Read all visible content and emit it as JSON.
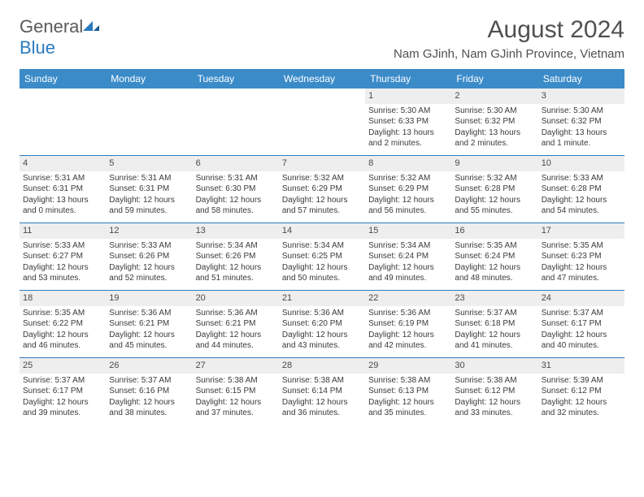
{
  "logo": {
    "text1": "General",
    "text2": "Blue"
  },
  "title": "August 2024",
  "location": "Nam GJinh, Nam GJinh Province, Vietnam",
  "colors": {
    "header_bg": "#3b8bc9",
    "daynum_bg": "#eeeeee",
    "border": "#2b7bbf",
    "text": "#3a3a3a",
    "title_text": "#505050"
  },
  "weekdays": [
    "Sunday",
    "Monday",
    "Tuesday",
    "Wednesday",
    "Thursday",
    "Friday",
    "Saturday"
  ],
  "weeks": [
    [
      null,
      null,
      null,
      null,
      {
        "n": "1",
        "sr": "5:30 AM",
        "ss": "6:33 PM",
        "dl": "13 hours and 2 minutes."
      },
      {
        "n": "2",
        "sr": "5:30 AM",
        "ss": "6:32 PM",
        "dl": "13 hours and 2 minutes."
      },
      {
        "n": "3",
        "sr": "5:30 AM",
        "ss": "6:32 PM",
        "dl": "13 hours and 1 minute."
      }
    ],
    [
      {
        "n": "4",
        "sr": "5:31 AM",
        "ss": "6:31 PM",
        "dl": "13 hours and 0 minutes."
      },
      {
        "n": "5",
        "sr": "5:31 AM",
        "ss": "6:31 PM",
        "dl": "12 hours and 59 minutes."
      },
      {
        "n": "6",
        "sr": "5:31 AM",
        "ss": "6:30 PM",
        "dl": "12 hours and 58 minutes."
      },
      {
        "n": "7",
        "sr": "5:32 AM",
        "ss": "6:29 PM",
        "dl": "12 hours and 57 minutes."
      },
      {
        "n": "8",
        "sr": "5:32 AM",
        "ss": "6:29 PM",
        "dl": "12 hours and 56 minutes."
      },
      {
        "n": "9",
        "sr": "5:32 AM",
        "ss": "6:28 PM",
        "dl": "12 hours and 55 minutes."
      },
      {
        "n": "10",
        "sr": "5:33 AM",
        "ss": "6:28 PM",
        "dl": "12 hours and 54 minutes."
      }
    ],
    [
      {
        "n": "11",
        "sr": "5:33 AM",
        "ss": "6:27 PM",
        "dl": "12 hours and 53 minutes."
      },
      {
        "n": "12",
        "sr": "5:33 AM",
        "ss": "6:26 PM",
        "dl": "12 hours and 52 minutes."
      },
      {
        "n": "13",
        "sr": "5:34 AM",
        "ss": "6:26 PM",
        "dl": "12 hours and 51 minutes."
      },
      {
        "n": "14",
        "sr": "5:34 AM",
        "ss": "6:25 PM",
        "dl": "12 hours and 50 minutes."
      },
      {
        "n": "15",
        "sr": "5:34 AM",
        "ss": "6:24 PM",
        "dl": "12 hours and 49 minutes."
      },
      {
        "n": "16",
        "sr": "5:35 AM",
        "ss": "6:24 PM",
        "dl": "12 hours and 48 minutes."
      },
      {
        "n": "17",
        "sr": "5:35 AM",
        "ss": "6:23 PM",
        "dl": "12 hours and 47 minutes."
      }
    ],
    [
      {
        "n": "18",
        "sr": "5:35 AM",
        "ss": "6:22 PM",
        "dl": "12 hours and 46 minutes."
      },
      {
        "n": "19",
        "sr": "5:36 AM",
        "ss": "6:21 PM",
        "dl": "12 hours and 45 minutes."
      },
      {
        "n": "20",
        "sr": "5:36 AM",
        "ss": "6:21 PM",
        "dl": "12 hours and 44 minutes."
      },
      {
        "n": "21",
        "sr": "5:36 AM",
        "ss": "6:20 PM",
        "dl": "12 hours and 43 minutes."
      },
      {
        "n": "22",
        "sr": "5:36 AM",
        "ss": "6:19 PM",
        "dl": "12 hours and 42 minutes."
      },
      {
        "n": "23",
        "sr": "5:37 AM",
        "ss": "6:18 PM",
        "dl": "12 hours and 41 minutes."
      },
      {
        "n": "24",
        "sr": "5:37 AM",
        "ss": "6:17 PM",
        "dl": "12 hours and 40 minutes."
      }
    ],
    [
      {
        "n": "25",
        "sr": "5:37 AM",
        "ss": "6:17 PM",
        "dl": "12 hours and 39 minutes."
      },
      {
        "n": "26",
        "sr": "5:37 AM",
        "ss": "6:16 PM",
        "dl": "12 hours and 38 minutes."
      },
      {
        "n": "27",
        "sr": "5:38 AM",
        "ss": "6:15 PM",
        "dl": "12 hours and 37 minutes."
      },
      {
        "n": "28",
        "sr": "5:38 AM",
        "ss": "6:14 PM",
        "dl": "12 hours and 36 minutes."
      },
      {
        "n": "29",
        "sr": "5:38 AM",
        "ss": "6:13 PM",
        "dl": "12 hours and 35 minutes."
      },
      {
        "n": "30",
        "sr": "5:38 AM",
        "ss": "6:12 PM",
        "dl": "12 hours and 33 minutes."
      },
      {
        "n": "31",
        "sr": "5:39 AM",
        "ss": "6:12 PM",
        "dl": "12 hours and 32 minutes."
      }
    ]
  ],
  "labels": {
    "sunrise": "Sunrise:",
    "sunset": "Sunset:",
    "daylight": "Daylight:"
  }
}
